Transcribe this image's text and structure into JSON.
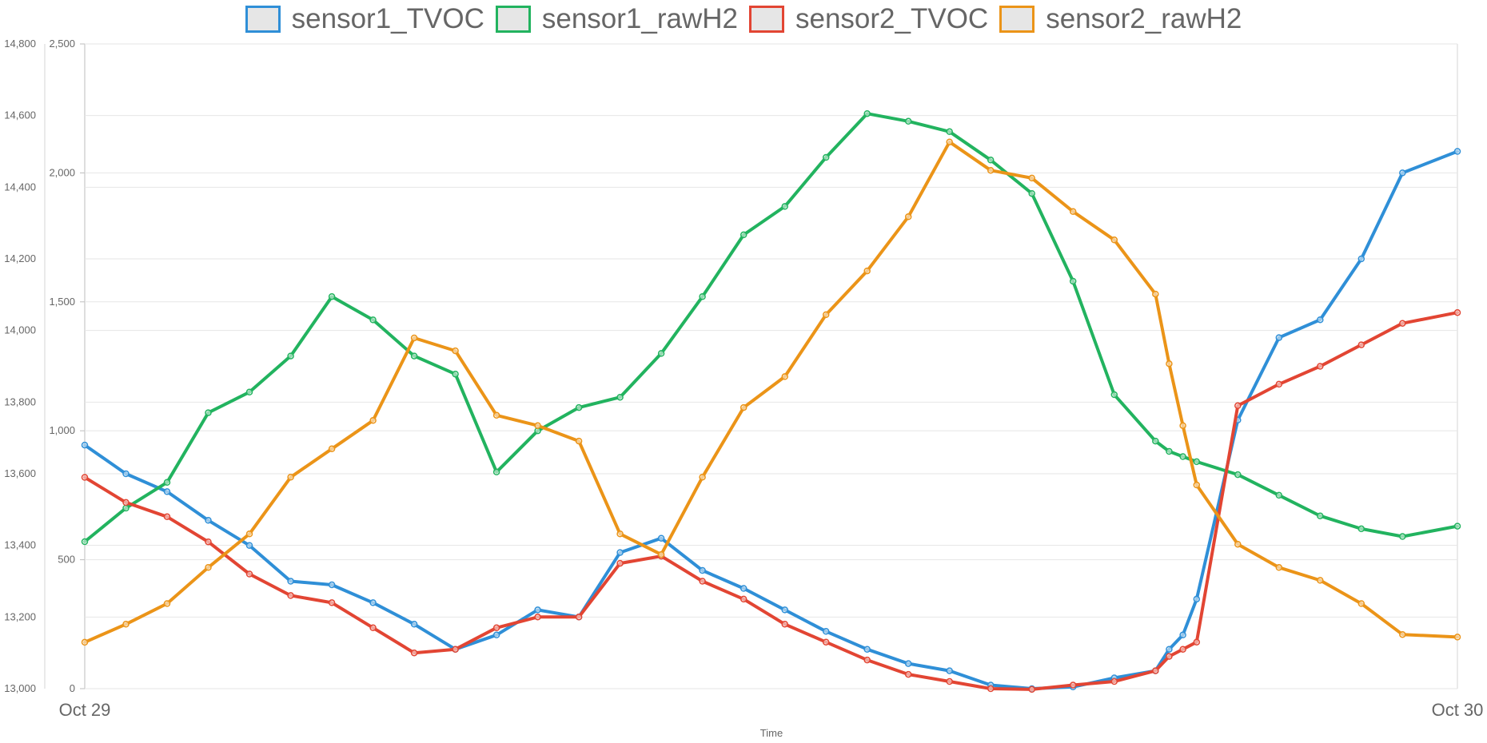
{
  "chart_data": {
    "type": "line",
    "legend_position": "top",
    "grid": true,
    "xlabel": "Time",
    "x_tick_labels": [
      "Oct 29",
      "Oct 30"
    ],
    "y_axes": {
      "left_outer": {
        "ticks": [
          "13,000",
          "13,200",
          "13,400",
          "13,600",
          "13,800",
          "14,000",
          "14,200",
          "14,400",
          "14,600",
          "14,800"
        ],
        "range": [
          13000,
          14800
        ]
      },
      "left_inner": {
        "ticks": [
          "0",
          "500",
          "1,000",
          "1,500",
          "2,000",
          "2,500"
        ],
        "range": [
          0,
          2500
        ]
      }
    },
    "x_positions": [
      0,
      0.03,
      0.06,
      0.09,
      0.12,
      0.15,
      0.18,
      0.21,
      0.24,
      0.27,
      0.3,
      0.33,
      0.36,
      0.39,
      0.42,
      0.45,
      0.48,
      0.51,
      0.54,
      0.57,
      0.6,
      0.63,
      0.66,
      0.69,
      0.72,
      0.75,
      0.78,
      0.79,
      0.8,
      0.81,
      0.84,
      0.87,
      0.9,
      0.93,
      0.96,
      1.0
    ],
    "series": [
      {
        "name": "sensor1_TVOC",
        "color": "#2f8fd7",
        "axis": "left_outer",
        "values": [
          13680,
          13600,
          13550,
          13470,
          13400,
          13300,
          13290,
          13240,
          13180,
          13110,
          13150,
          13220,
          13200,
          13380,
          13420,
          13330,
          13280,
          13220,
          13160,
          13110,
          13070,
          13050,
          13010,
          13000,
          13005,
          13030,
          13050,
          13110,
          13150,
          13250,
          13750,
          13980,
          14030,
          14200,
          14440,
          14500
        ]
      },
      {
        "name": "sensor1_rawH2",
        "color": "#22b35f",
        "axis": "left_inner",
        "values": [
          570,
          700,
          800,
          1070,
          1150,
          1290,
          1520,
          1430,
          1290,
          1220,
          840,
          1000,
          1090,
          1130,
          1300,
          1520,
          1760,
          1870,
          2060,
          2230,
          2200,
          2160,
          2050,
          1920,
          1580,
          1140,
          960,
          920,
          900,
          880,
          830,
          750,
          670,
          620,
          590,
          630
        ]
      },
      {
        "name": "sensor2_TVOC",
        "color": "#e24533",
        "axis": "left_outer",
        "values": [
          13590,
          13520,
          13480,
          13410,
          13320,
          13260,
          13240,
          13170,
          13100,
          13110,
          13170,
          13200,
          13200,
          13350,
          13370,
          13300,
          13250,
          13180,
          13130,
          13080,
          13040,
          13020,
          13000,
          12998,
          13010,
          13020,
          13050,
          13090,
          13110,
          13130,
          13790,
          13850,
          13900,
          13960,
          14020,
          14050
        ]
      },
      {
        "name": "sensor2_rawH2",
        "color": "#eb9418",
        "axis": "left_inner",
        "values": [
          180,
          250,
          330,
          470,
          600,
          820,
          930,
          1040,
          1360,
          1310,
          1060,
          1020,
          960,
          600,
          520,
          820,
          1090,
          1210,
          1450,
          1620,
          1830,
          2120,
          2010,
          1980,
          1850,
          1740,
          1530,
          1260,
          1020,
          790,
          560,
          470,
          420,
          330,
          210,
          200
        ]
      }
    ]
  }
}
